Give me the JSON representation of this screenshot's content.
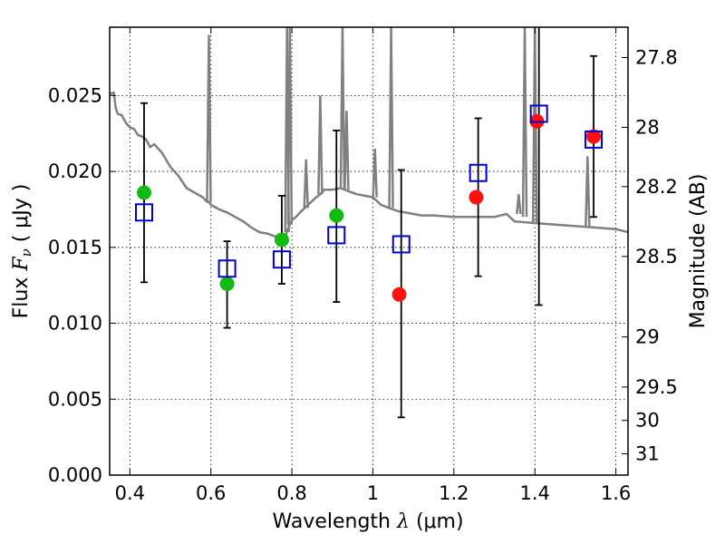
{
  "chart_data": {
    "type": "scatter",
    "xlabel_prefix": "Wavelength",
    "xlabel_symbol": "λ",
    "xlabel_unit": "(μm)",
    "ylabel_prefix": "Flux",
    "ylabel_symbol": "F",
    "ylabel_symbol_sub": "ν",
    "ylabel_unit": "( μJy )",
    "y2label": "Magnitude (AB)",
    "xlim": [
      0.35,
      1.63
    ],
    "ylim": [
      0.0,
      0.0295
    ],
    "grid": true,
    "x_ticks": [
      0.4,
      0.6,
      0.8,
      1.0,
      1.2,
      1.4,
      1.6
    ],
    "x_tick_labels": [
      "0.4",
      "0.6",
      "0.8",
      "1",
      "1.2",
      "1.4",
      "1.6"
    ],
    "y_ticks": [
      0.0,
      0.005,
      0.01,
      0.015,
      0.02,
      0.025
    ],
    "y_tick_labels": [
      "0.000",
      "0.005",
      "0.010",
      "0.015",
      "0.020",
      "0.025"
    ],
    "y2_ticks": [
      {
        "label": "27.8",
        "flux": 0.0275
      },
      {
        "label": "28",
        "flux": 0.0229
      },
      {
        "label": "28.2",
        "flux": 0.019
      },
      {
        "label": "28.5",
        "flux": 0.0144
      },
      {
        "label": "29",
        "flux": 0.0091
      },
      {
        "label": "29.5",
        "flux": 0.0058
      },
      {
        "label": "30",
        "flux": 0.0036
      },
      {
        "label": "31",
        "flux": 0.0014
      }
    ],
    "colors": {
      "model": "#808080",
      "green": "#11bb11",
      "red": "#ff1111",
      "square": "#0000cc",
      "errorbar": "#000000"
    },
    "model_spectrum": {
      "x": [
        0.35,
        0.36,
        0.365,
        0.37,
        0.38,
        0.39,
        0.4,
        0.41,
        0.42,
        0.43,
        0.44,
        0.45,
        0.46,
        0.47,
        0.48,
        0.5,
        0.52,
        0.54,
        0.56,
        0.58,
        0.59,
        0.595,
        0.6,
        0.62,
        0.64,
        0.66,
        0.68,
        0.7,
        0.72,
        0.74,
        0.76,
        0.77,
        0.78,
        0.79,
        0.8,
        0.81,
        0.82,
        0.84,
        0.86,
        0.87,
        0.88,
        0.9,
        0.92,
        0.94,
        0.96,
        0.98,
        1.0,
        1.02,
        1.04,
        1.06,
        1.08,
        1.1,
        1.12,
        1.15,
        1.2,
        1.25,
        1.3,
        1.33,
        1.35,
        1.4,
        1.45,
        1.5,
        1.55,
        1.6,
        1.63
      ],
      "y": [
        0.0251,
        0.0252,
        0.0242,
        0.0238,
        0.0237,
        0.0232,
        0.0229,
        0.0228,
        0.0224,
        0.0223,
        0.0221,
        0.0216,
        0.0218,
        0.0215,
        0.0212,
        0.0203,
        0.0197,
        0.0189,
        0.0186,
        0.0183,
        0.018,
        0.018,
        0.0178,
        0.0175,
        0.0173,
        0.017,
        0.0167,
        0.0163,
        0.016,
        0.0159,
        0.0157,
        0.0155,
        0.0154,
        0.0162,
        0.0168,
        0.017,
        0.0173,
        0.0178,
        0.0183,
        0.0185,
        0.0188,
        0.0188,
        0.0189,
        0.0187,
        0.0185,
        0.0184,
        0.0183,
        0.0178,
        0.0176,
        0.0174,
        0.0173,
        0.0172,
        0.0171,
        0.0171,
        0.017,
        0.017,
        0.017,
        0.0172,
        0.0167,
        0.0166,
        0.0165,
        0.0164,
        0.0163,
        0.0162,
        0.016
      ]
    },
    "emission_lines": [
      {
        "x": 0.595,
        "base": 0.018,
        "peak": 0.029
      },
      {
        "x": 0.788,
        "base": 0.016,
        "peak": 0.0295
      },
      {
        "x": 0.795,
        "base": 0.0165,
        "peak": 0.0295
      },
      {
        "x": 0.835,
        "base": 0.0176,
        "peak": 0.0208
      },
      {
        "x": 0.87,
        "base": 0.0185,
        "peak": 0.025
      },
      {
        "x": 0.925,
        "base": 0.0189,
        "peak": 0.0295
      },
      {
        "x": 0.935,
        "base": 0.0188,
        "peak": 0.024
      },
      {
        "x": 1.005,
        "base": 0.0183,
        "peak": 0.0215
      },
      {
        "x": 1.045,
        "base": 0.0176,
        "peak": 0.0295
      },
      {
        "x": 1.36,
        "base": 0.0172,
        "peak": 0.0185
      },
      {
        "x": 1.375,
        "base": 0.017,
        "peak": 0.0295
      },
      {
        "x": 1.4,
        "base": 0.0166,
        "peak": 0.0295
      },
      {
        "x": 1.53,
        "base": 0.0164,
        "peak": 0.021
      }
    ],
    "observed_flux": [
      {
        "x": 0.435,
        "y": 0.0186,
        "color": "green"
      },
      {
        "x": 0.64,
        "y": 0.0126,
        "color": "green"
      },
      {
        "x": 0.775,
        "y": 0.0155,
        "color": "green"
      },
      {
        "x": 0.91,
        "y": 0.0171,
        "color": "green"
      },
      {
        "x": 1.065,
        "y": 0.0119,
        "color": "red"
      },
      {
        "x": 1.255,
        "y": 0.0183,
        "color": "red"
      },
      {
        "x": 1.405,
        "y": 0.0233,
        "color": "red"
      },
      {
        "x": 1.545,
        "y": 0.0223,
        "color": "red"
      }
    ],
    "model_flux": [
      {
        "x": 0.435,
        "y": 0.0173,
        "err_low": 0.0127,
        "err_high": 0.0245
      },
      {
        "x": 0.64,
        "y": 0.0136,
        "err_low": 0.0097,
        "err_high": 0.0154
      },
      {
        "x": 0.775,
        "y": 0.0142,
        "err_low": 0.0126,
        "err_high": 0.0184
      },
      {
        "x": 0.91,
        "y": 0.0158,
        "err_low": 0.0114,
        "err_high": 0.0227
      },
      {
        "x": 1.07,
        "y": 0.0152,
        "err_low": 0.0038,
        "err_high": 0.0201
      },
      {
        "x": 1.26,
        "y": 0.0199,
        "err_low": 0.0131,
        "err_high": 0.0235
      },
      {
        "x": 1.41,
        "y": 0.0238,
        "err_low": 0.0112,
        "err_high": 0.0295
      },
      {
        "x": 1.545,
        "y": 0.0221,
        "err_low": 0.017,
        "err_high": 0.0276
      }
    ]
  }
}
